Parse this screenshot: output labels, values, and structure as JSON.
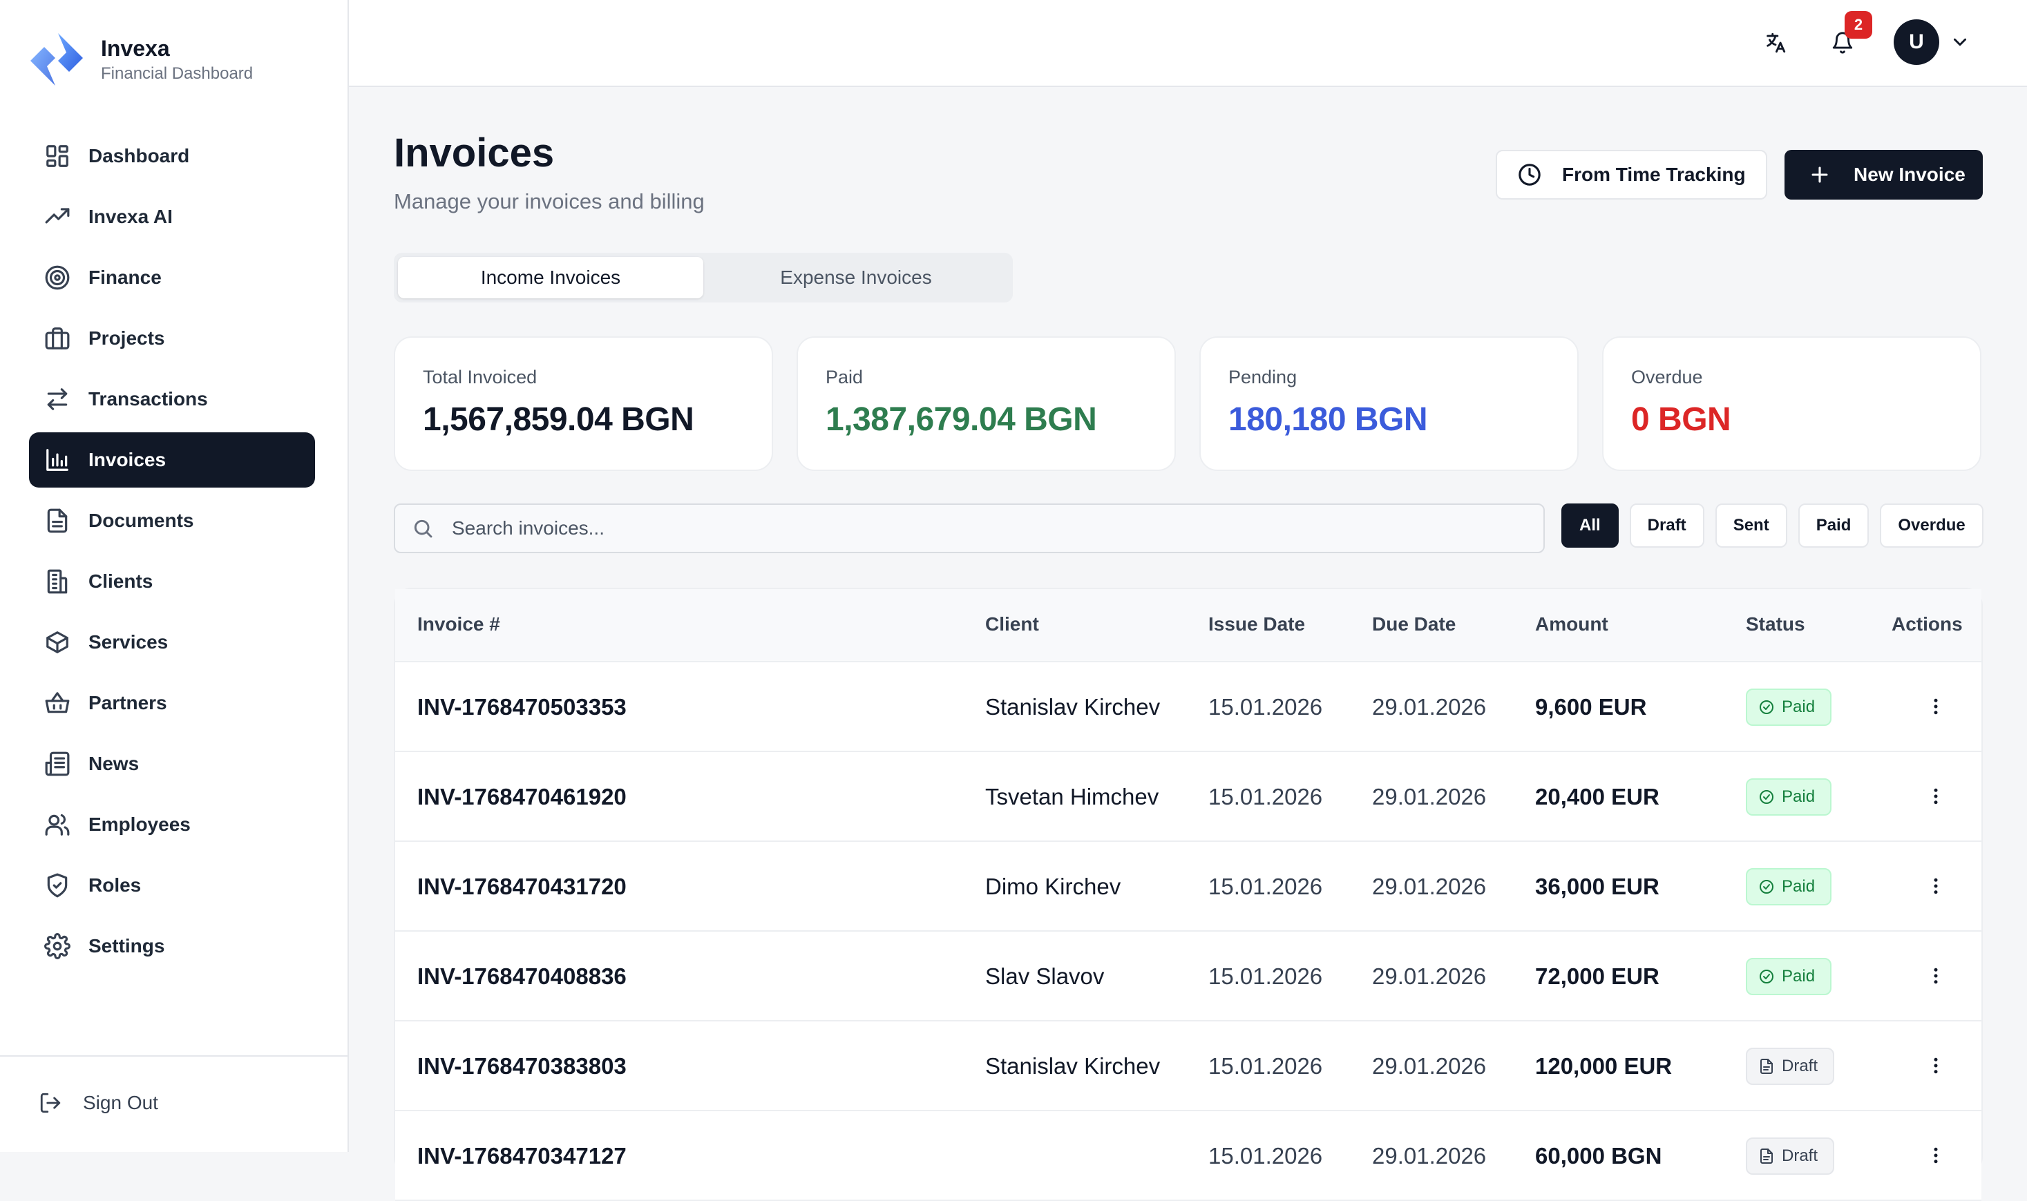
{
  "brand": {
    "name": "Invexa",
    "subtitle": "Financial Dashboard",
    "accent": "#3b6ef5"
  },
  "sidebar": {
    "items": [
      {
        "label": "Dashboard",
        "icon": "dashboard-icon"
      },
      {
        "label": "Invexa AI",
        "icon": "trending-up-icon"
      },
      {
        "label": "Finance",
        "icon": "target-icon"
      },
      {
        "label": "Projects",
        "icon": "briefcase-icon"
      },
      {
        "label": "Transactions",
        "icon": "arrows-swap-icon"
      },
      {
        "label": "Invoices",
        "icon": "bar-chart-icon",
        "active": true
      },
      {
        "label": "Documents",
        "icon": "document-icon"
      },
      {
        "label": "Clients",
        "icon": "building-icon"
      },
      {
        "label": "Services",
        "icon": "box-icon"
      },
      {
        "label": "Partners",
        "icon": "basket-icon"
      },
      {
        "label": "News",
        "icon": "newspaper-icon"
      },
      {
        "label": "Employees",
        "icon": "users-icon"
      },
      {
        "label": "Roles",
        "icon": "shield-icon"
      },
      {
        "label": "Settings",
        "icon": "gear-icon"
      }
    ],
    "signout": "Sign Out"
  },
  "topbar": {
    "notification_count": "2",
    "avatar_initial": "U"
  },
  "page": {
    "title": "Invoices",
    "subtitle": "Manage your invoices and billing",
    "btn_time": "From Time Tracking",
    "btn_new": "New Invoice"
  },
  "tabs": {
    "income": "Income Invoices",
    "expense": "Expense Invoices"
  },
  "stats": [
    {
      "label": "Total Invoiced",
      "value": "1,567,859.04 BGN",
      "color": "#111827"
    },
    {
      "label": "Paid",
      "value": "1,387,679.04 BGN",
      "color": "#2e7d4f"
    },
    {
      "label": "Pending",
      "value": "180,180 BGN",
      "color": "#3b5bdb"
    },
    {
      "label": "Overdue",
      "value": "0 BGN",
      "color": "#dc2626"
    }
  ],
  "search": {
    "placeholder": "Search invoices..."
  },
  "filters": [
    "All",
    "Draft",
    "Sent",
    "Paid",
    "Overdue"
  ],
  "table": {
    "headers": {
      "invoice": "Invoice #",
      "client": "Client",
      "issue": "Issue Date",
      "due": "Due Date",
      "amount": "Amount",
      "status": "Status",
      "actions": "Actions"
    },
    "rows": [
      {
        "invoice": "INV-1768470503353",
        "client": "Stanislav Kirchev",
        "issue": "15.01.2026",
        "due": "29.01.2026",
        "amount": "9,600 EUR",
        "status": "Paid"
      },
      {
        "invoice": "INV-1768470461920",
        "client": "Tsvetan Himchev",
        "issue": "15.01.2026",
        "due": "29.01.2026",
        "amount": "20,400 EUR",
        "status": "Paid"
      },
      {
        "invoice": "INV-1768470431720",
        "client": "Dimo Kirchev",
        "issue": "15.01.2026",
        "due": "29.01.2026",
        "amount": "36,000 EUR",
        "status": "Paid"
      },
      {
        "invoice": "INV-1768470408836",
        "client": "Slav Slavov",
        "issue": "15.01.2026",
        "due": "29.01.2026",
        "amount": "72,000 EUR",
        "status": "Paid"
      },
      {
        "invoice": "INV-1768470383803",
        "client": "Stanislav Kirchev",
        "issue": "15.01.2026",
        "due": "29.01.2026",
        "amount": "120,000 EUR",
        "status": "Draft"
      },
      {
        "invoice": "INV-1768470347127",
        "client": "",
        "issue": "15.01.2026",
        "due": "29.01.2026",
        "amount": "60,000 BGN",
        "status": "Draft"
      }
    ]
  }
}
